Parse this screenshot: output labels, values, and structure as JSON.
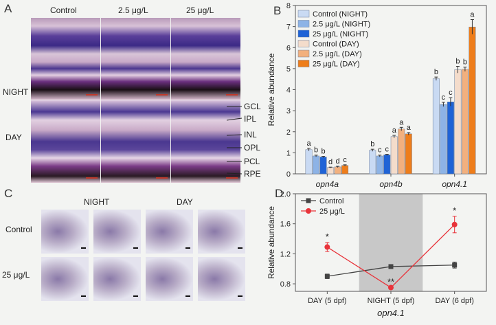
{
  "panels": {
    "a": {
      "letter": "A",
      "col_labels": [
        "Control",
        "2.5 μg/L",
        "25 μg/L"
      ],
      "row_labels": [
        "NIGHT",
        "DAY"
      ],
      "layers": [
        "GCL",
        "IPL",
        "INL",
        "OPL",
        "PCL",
        "RPE"
      ]
    },
    "b": {
      "letter": "B"
    },
    "c": {
      "letter": "C",
      "col_labels": [
        "NIGHT",
        "DAY"
      ],
      "row_labels": [
        "Control",
        "25 μg/L"
      ]
    },
    "d": {
      "letter": "D"
    }
  },
  "chart_data": [
    {
      "type": "bar",
      "title": "",
      "xlabel": "",
      "ylabel": "Relative abundance",
      "ylim": [
        0,
        8
      ],
      "yticks": [
        0,
        1,
        2,
        3,
        4,
        5,
        6,
        7,
        8
      ],
      "categories": [
        "opn4a",
        "opn4b",
        "opn4.1"
      ],
      "series": [
        {
          "name": "Control (NIGHT)",
          "color": "#c9daf3",
          "values": [
            1.15,
            1.12,
            4.52
          ],
          "errors": [
            0.06,
            0.05,
            0.08
          ],
          "letters": [
            "a",
            "b",
            "b"
          ]
        },
        {
          "name": "2.5 μg/L (NIGHT)",
          "color": "#8db3e6",
          "values": [
            0.85,
            0.85,
            3.3
          ],
          "errors": [
            0.04,
            0.04,
            0.1
          ],
          "letters": [
            "b",
            "c",
            "c"
          ]
        },
        {
          "name": "25 μg/L (NIGHT)",
          "color": "#1f63d6",
          "values": [
            0.8,
            0.9,
            3.42
          ],
          "errors": [
            0.03,
            0.03,
            0.2
          ],
          "letters": [
            "b",
            "c",
            "c"
          ]
        },
        {
          "name": "Control (DAY)",
          "color": "#f4dccb",
          "values": [
            0.3,
            1.77,
            4.95
          ],
          "errors": [
            0.02,
            0.06,
            0.16
          ],
          "letters": [
            "d",
            "a",
            "b"
          ]
        },
        {
          "name": "2.5 μg/L (DAY)",
          "color": "#f2b07e",
          "values": [
            0.33,
            2.13,
            4.97
          ],
          "errors": [
            0.03,
            0.08,
            0.1
          ],
          "letters": [
            "d",
            "a",
            "b"
          ]
        },
        {
          "name": "25 μg/L (DAY)",
          "color": "#ee7d1a",
          "values": [
            0.4,
            1.9,
            6.98
          ],
          "errors": [
            0.03,
            0.06,
            0.35
          ],
          "letters": [
            "c",
            "a",
            "a"
          ]
        }
      ]
    },
    {
      "type": "line",
      "title": "",
      "xlabel": "opn4.1",
      "ylabel": "Relative abundance",
      "ylim": [
        0.7,
        2.0
      ],
      "yticks": [
        0.8,
        1.2,
        1.6,
        2.0
      ],
      "categories": [
        "DAY (5 dpf)",
        "NIGHT (5 dpf)",
        "DAY (6 dpf)"
      ],
      "shaded_category": "NIGHT (5 dpf)",
      "series": [
        {
          "name": "Control",
          "color": "#444444",
          "marker": "square",
          "values": [
            0.9,
            1.03,
            1.05
          ],
          "errors": [
            0.03,
            0.01,
            0.04
          ],
          "annotations": [
            "",
            "",
            ""
          ]
        },
        {
          "name": "25 μg/L",
          "color": "#e8333a",
          "marker": "circle",
          "values": [
            1.29,
            0.75,
            1.59
          ],
          "errors": [
            0.06,
            0.02,
            0.11
          ],
          "annotations": [
            "*",
            "**",
            "*"
          ]
        }
      ]
    }
  ]
}
